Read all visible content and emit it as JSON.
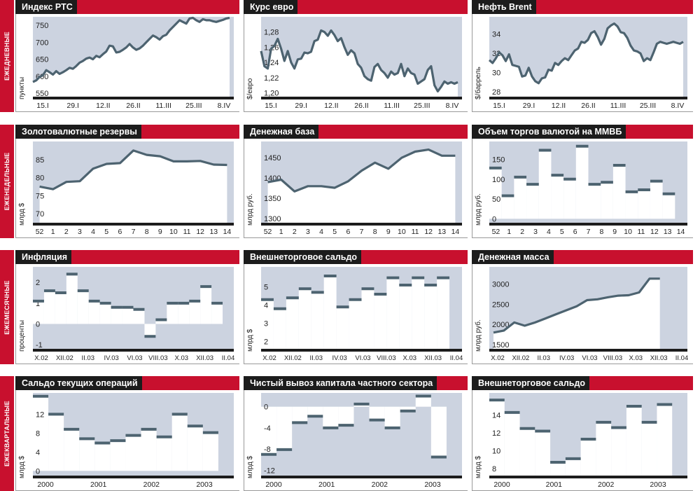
{
  "colors": {
    "red": "#c8102e",
    "dark": "#1c1c1c",
    "area": "#ccd3e0",
    "line": "#4d6370",
    "axisbar": "#1c1c1c"
  },
  "sections": [
    {
      "label": "ЕЖЕДНЕВНЫЕ",
      "charts": [
        {
          "title": "Индекс РТС",
          "ylabel": "пункты",
          "chart_data": {
            "type": "line",
            "title": "Индекс РТС",
            "ylabel": "пункты",
            "ylim": [
              540,
              775
            ],
            "yticks": [
              550,
              600,
              650,
              700,
              750
            ],
            "xticks": [
              "15.I",
              "29.I",
              "12.II",
              "26.II",
              "11.III",
              "25.III",
              "8.IV"
            ],
            "n": 60,
            "values": [
              583,
              588,
              598,
              603,
              618,
              612,
              605,
              615,
              607,
              612,
              618,
              625,
              622,
              630,
              640,
              645,
              652,
              655,
              650,
              660,
              656,
              665,
              673,
              690,
              688,
              670,
              672,
              678,
              685,
              695,
              685,
              678,
              682,
              690,
              700,
              710,
              720,
              715,
              708,
              718,
              722,
              735,
              745,
              755,
              765,
              760,
              755,
              770,
              772,
              765,
              760,
              768,
              765,
              765,
              762,
              760,
              763,
              766,
              770,
              772
            ]
          }
        },
        {
          "title": "Курс евро",
          "ylabel": "$/евро",
          "chart_data": {
            "type": "line",
            "title": "Курс евро",
            "ylabel": "$/евро",
            "ylim": [
              1.195,
              1.3
            ],
            "yticks": [
              "1,20",
              "1,22",
              "1,24",
              "1,26",
              "1,28"
            ],
            "ytickvals": [
              1.2,
              1.22,
              1.24,
              1.26,
              1.28
            ],
            "xticks": [
              "15.I",
              "29.I",
              "12.II",
              "26.II",
              "11.III",
              "25.III",
              "8.IV"
            ],
            "n": 60,
            "values": [
              1.255,
              1.235,
              1.232,
              1.258,
              1.262,
              1.271,
              1.258,
              1.242,
              1.255,
              1.24,
              1.232,
              1.244,
              1.245,
              1.253,
              1.252,
              1.254,
              1.268,
              1.27,
              1.282,
              1.28,
              1.275,
              1.282,
              1.276,
              1.268,
              1.272,
              1.26,
              1.25,
              1.256,
              1.252,
              1.238,
              1.233,
              1.222,
              1.218,
              1.216,
              1.234,
              1.238,
              1.23,
              1.226,
              1.22,
              1.228,
              1.224,
              1.226,
              1.238,
              1.222,
              1.232,
              1.226,
              1.224,
              1.212,
              1.215,
              1.218,
              1.23,
              1.235,
              1.21,
              1.202,
              1.208,
              1.215,
              1.212,
              1.214,
              1.212,
              1.214
            ]
          }
        },
        {
          "title": "Нефть Brent",
          "ylabel": "$/баррель",
          "chart_data": {
            "type": "line",
            "title": "Нефть Brent",
            "ylabel": "$/баррель",
            "ylim": [
              27.5,
              35.8
            ],
            "yticks": [
              28,
              30,
              32,
              34
            ],
            "xticks": [
              "15.I",
              "29.I",
              "12.II",
              "26.II",
              "11.III",
              "25.III",
              "8.IV"
            ],
            "n": 60,
            "values": [
              31.3,
              31.0,
              31.5,
              32.1,
              31.8,
              31.2,
              31.9,
              30.8,
              30.7,
              30.6,
              29.6,
              29.7,
              30.5,
              29.6,
              29.1,
              28.9,
              29.4,
              29.5,
              30.3,
              30.2,
              31.0,
              30.8,
              31.2,
              31.5,
              31.3,
              31.8,
              32.3,
              32.5,
              33.2,
              33.1,
              33.4,
              34.1,
              34.3,
              33.7,
              32.9,
              33.5,
              34.6,
              34.9,
              35.1,
              34.8,
              34.2,
              34.1,
              33.6,
              32.8,
              32.3,
              32.2,
              32.0,
              31.2,
              31.5,
              31.3,
              32.1,
              33.0,
              33.2,
              33.1,
              33.0,
              33.1,
              33.2,
              33.1,
              33.0,
              33.2
            ]
          }
        }
      ]
    },
    {
      "label": "ЕЖЕНЕДЕЛЬНЫЕ",
      "charts": [
        {
          "title": "Золотовалютные резервы",
          "ylabel": "млрд $",
          "chart_data": {
            "type": "line",
            "title": "Золотовалютные резервы",
            "ylabel": "млрд $",
            "ylim": [
              67.5,
              90
            ],
            "yticks": [
              70,
              75,
              80,
              85
            ],
            "xticks": [
              "52",
              "1",
              "2",
              "3",
              "4",
              "5",
              "6",
              "7",
              "8",
              "9",
              "10",
              "11",
              "12",
              "13",
              "14"
            ],
            "values": [
              77.5,
              76.8,
              78.8,
              79.0,
              82.5,
              83.8,
              84.0,
              87.5,
              86.3,
              85.9,
              84.5,
              84.5,
              84.6,
              83.6,
              83.5
            ]
          }
        },
        {
          "title": "Денежная база",
          "ylabel": "млрд руб.",
          "chart_data": {
            "type": "line",
            "title": "Денежная база",
            "ylabel": "млрд руб.",
            "ylim": [
              1290,
              1490
            ],
            "yticks": [
              1300,
              1350,
              1400,
              1450
            ],
            "xticks": [
              "52",
              "1",
              "2",
              "3",
              "4",
              "5",
              "6",
              "7",
              "8",
              "9",
              "10",
              "11",
              "12",
              "13",
              "14"
            ],
            "values": [
              1390,
              1396,
              1367,
              1380,
              1380,
              1376,
              1392,
              1418,
              1438,
              1423,
              1450,
              1465,
              1470,
              1455,
              1455
            ]
          }
        },
        {
          "title": "Объем торгов валютой на ММВБ",
          "ylabel": "млрд руб.",
          "chart_data": {
            "type": "step",
            "title": "Объем торгов валютой на ММВБ",
            "ylabel": "млрд руб.",
            "ylim": [
              -10,
              195
            ],
            "yticks": [
              0,
              50,
              100,
              150
            ],
            "xticks": [
              "52",
              "1",
              "2",
              "3",
              "4",
              "5",
              "6",
              "7",
              "8",
              "9",
              "10",
              "11",
              "12",
              "13",
              "14"
            ],
            "values": [
              128,
              58,
              105,
              87,
              173,
              110,
              100,
              183,
              87,
              92,
              135,
              68,
              73,
              95,
              63
            ]
          }
        }
      ]
    },
    {
      "label": "ЕЖЕМЕСЯЧНЫЕ",
      "charts": [
        {
          "title": "Инфляция",
          "ylabel": "проценты",
          "chart_data": {
            "type": "step",
            "title": "Инфляция",
            "ylabel": "проценты",
            "ylim": [
              -1.2,
              2.75
            ],
            "yticks": [
              -1,
              0,
              1,
              2
            ],
            "xticks": [
              "X.02",
              "XII.02",
              "II.03",
              "IV.03",
              "VI.03",
              "VIII.03",
              "X.03",
              "XII.03",
              "II.04"
            ],
            "values": [
              1.1,
              1.6,
              1.5,
              2.4,
              1.6,
              1.1,
              1.0,
              0.8,
              0.8,
              0.7,
              -0.6,
              0.2,
              1.0,
              1.0,
              1.1,
              1.8,
              1.0
            ]
          }
        },
        {
          "title": "Внешнеторговое сальдо",
          "ylabel": "млрд $",
          "chart_data": {
            "type": "step",
            "title": "Внешнеторговое сальдо",
            "ylabel": "млрд $",
            "ylim": [
              1.6,
              6.1
            ],
            "yticks": [
              2,
              3,
              4,
              5
            ],
            "xticks": [
              "X.02",
              "XII.02",
              "II.03",
              "IV.03",
              "VI.03",
              "VIII.03",
              "X.03",
              "XII.03",
              "II.04"
            ],
            "values": [
              4.3,
              3.8,
              4.4,
              4.9,
              4.7,
              5.6,
              3.9,
              4.3,
              4.9,
              4.6,
              5.5,
              5.1,
              5.5,
              5.1,
              5.5
            ]
          }
        },
        {
          "title": "Денежная масса",
          "ylabel": "млрд руб.",
          "chart_data": {
            "type": "line",
            "title": "Денежная масса",
            "ylabel": "млрд руб.",
            "ylim": [
              1400,
              3420
            ],
            "yticks": [
              1500,
              2000,
              2500,
              3000
            ],
            "xticks": [
              "X.02",
              "XII.02",
              "II.03",
              "IV.03",
              "VI.03",
              "VIII.03",
              "X.03",
              "XII.03",
              "II.04"
            ],
            "values": [
              1800,
              1850,
              2050,
              1970,
              2050,
              2150,
              2250,
              2350,
              2450,
              2600,
              2620,
              2670,
              2710,
              2720,
              2790,
              3130,
              3130
            ]
          }
        }
      ]
    },
    {
      "label": "ЕЖЕКВАРТАЛЬНЫЕ",
      "charts": [
        {
          "title": "Сальдо текущих операций",
          "ylabel": "млрд $",
          "chart_data": {
            "type": "step",
            "title": "Сальдо текущих операций",
            "ylabel": "млрд $",
            "ylim": [
              -1,
              16.5
            ],
            "yticks": [
              0,
              4,
              8,
              12
            ],
            "xticks": [
              "2000",
              "2001",
              "2002",
              "2003"
            ],
            "values": [
              15.8,
              12.0,
              8.8,
              6.8,
              5.9,
              6.4,
              7.5,
              8.8,
              7.2,
              12.0,
              9.5,
              8.1
            ]
          }
        },
        {
          "title": "Чистый вывоз капитала частного сектора",
          "ylabel": "млрд $",
          "chart_data": {
            "type": "step",
            "title": "Чистый вывоз капитала частного сектора",
            "ylabel": "млрд $",
            "ylim": [
              -13,
              2.6
            ],
            "yticks": [
              -12,
              -8,
              -4,
              0
            ],
            "xticks": [
              "2000",
              "2001",
              "2002",
              "2003"
            ],
            "values": [
              -9.0,
              -8.1,
              -3.0,
              -1.8,
              -4.0,
              -3.5,
              0.5,
              -2.5,
              -4.0,
              -0.8,
              2.0,
              -9.5
            ]
          }
        },
        {
          "title": "Внешнеторговое сальдо",
          "ylabel": "млрд $",
          "chart_data": {
            "type": "step",
            "title": "Внешнеторговое сальдо",
            "ylabel": "млрд $",
            "ylim": [
              7.2,
              16.5
            ],
            "yticks": [
              8,
              10,
              12,
              14
            ],
            "xticks": [
              "2000",
              "2001",
              "2002",
              "2003"
            ],
            "values": [
              15.7,
              14.3,
              12.5,
              12.2,
              8.7,
              9.1,
              11.3,
              13.2,
              12.6,
              15.0,
              13.2,
              15.2
            ]
          }
        }
      ]
    }
  ]
}
